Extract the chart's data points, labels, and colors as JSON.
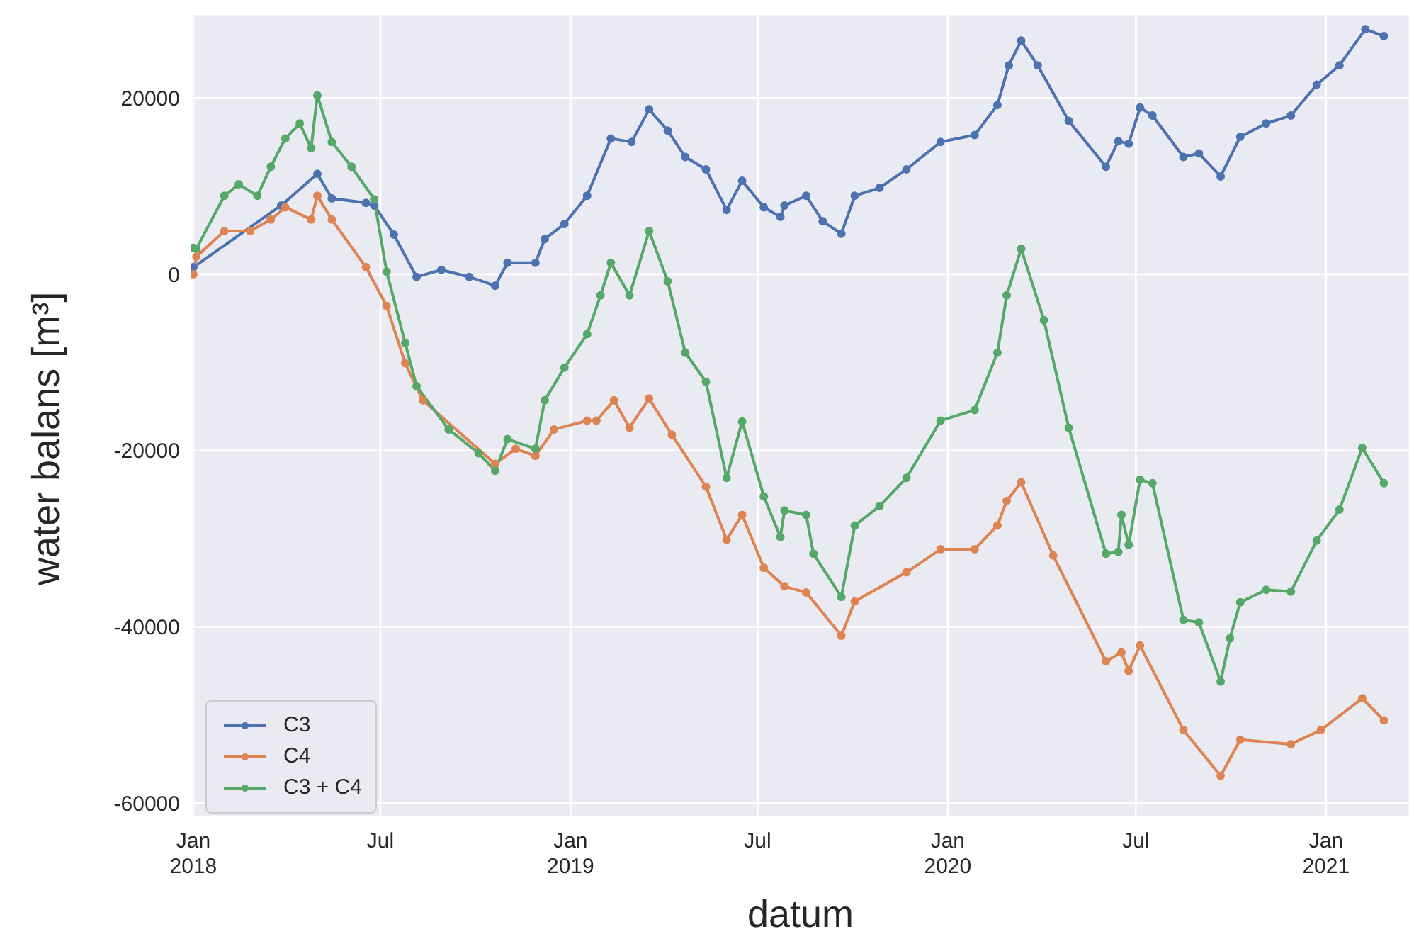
{
  "chart_data": {
    "type": "line",
    "xlabel": "datum",
    "ylabel": "water balans [m³]",
    "xlim": [
      "2017-12-30",
      "2021-03-23"
    ],
    "ylim": [
      -61500,
      29500
    ],
    "xticks": [
      {
        "value": "2018-01-01",
        "label": "Jan\n2018"
      },
      {
        "value": "2018-07-01",
        "label": "Jul"
      },
      {
        "value": "2019-01-01",
        "label": "Jan\n2019"
      },
      {
        "value": "2019-07-01",
        "label": "Jul"
      },
      {
        "value": "2020-01-01",
        "label": "Jan\n2020"
      },
      {
        "value": "2020-07-01",
        "label": "Jul"
      },
      {
        "value": "2021-01-01",
        "label": "Jan\n2021"
      }
    ],
    "yticks": [
      -60000,
      -40000,
      -20000,
      0,
      20000
    ],
    "grid": true,
    "legend": "bottom left",
    "marker": "circle",
    "line_style": "solid",
    "series": [
      {
        "name": "C3",
        "color": "#4c72b0",
        "x": [
          "2018-01-01",
          "2018-03-27",
          "2018-05-01",
          "2018-05-15",
          "2018-06-17",
          "2018-06-25",
          "2018-07-14",
          "2018-08-05",
          "2018-08-29",
          "2018-09-25",
          "2018-10-20",
          "2018-11-01",
          "2018-11-28",
          "2018-12-07",
          "2018-12-26",
          "2019-01-17",
          "2019-02-09",
          "2019-03-01",
          "2019-03-18",
          "2019-04-05",
          "2019-04-22",
          "2019-05-12",
          "2019-06-01",
          "2019-06-16",
          "2019-07-07",
          "2019-07-23",
          "2019-07-27",
          "2019-08-17",
          "2019-09-02",
          "2019-09-20",
          "2019-10-03",
          "2019-10-27",
          "2019-11-22",
          "2019-12-25",
          "2020-01-27",
          "2020-02-18",
          "2020-02-29",
          "2020-03-12",
          "2020-03-28",
          "2020-04-27",
          "2020-06-02",
          "2020-06-14",
          "2020-06-24",
          "2020-07-05",
          "2020-07-17",
          "2020-08-16",
          "2020-08-31",
          "2020-09-21",
          "2020-10-10",
          "2020-11-04",
          "2020-11-28",
          "2020-12-23",
          "2021-01-14",
          "2021-02-08",
          "2021-02-26"
        ],
        "values": [
          800,
          7800,
          11400,
          8600,
          8100,
          7800,
          4500,
          -300,
          500,
          -300,
          -1300,
          1300,
          1300,
          4000,
          5700,
          8900,
          15400,
          15000,
          18700,
          16300,
          13300,
          11900,
          7300,
          10600,
          7600,
          6500,
          7800,
          8900,
          6000,
          4600,
          8900,
          9800,
          11900,
          15000,
          15800,
          19200,
          23700,
          26500,
          23700,
          17400,
          12200,
          15100,
          14800,
          18900,
          18000,
          13300,
          13700,
          11100,
          15600,
          17100,
          18000,
          21500,
          23700,
          27800,
          27000
        ]
      },
      {
        "name": "C4",
        "color": "#dd8452",
        "x": [
          "2018-01-01",
          "2018-01-04",
          "2018-01-31",
          "2018-02-25",
          "2018-03-17",
          "2018-03-31",
          "2018-04-25",
          "2018-05-01",
          "2018-05-15",
          "2018-06-17",
          "2018-07-07",
          "2018-07-25",
          "2018-08-11",
          "2018-10-20",
          "2018-11-09",
          "2018-11-28",
          "2018-12-16",
          "2019-01-17",
          "2019-01-26",
          "2019-02-12",
          "2019-02-27",
          "2019-03-18",
          "2019-04-09",
          "2019-05-12",
          "2019-06-01",
          "2019-06-16",
          "2019-07-07",
          "2019-07-27",
          "2019-08-17",
          "2019-09-20",
          "2019-10-03",
          "2019-11-22",
          "2019-12-25",
          "2020-01-27",
          "2020-02-18",
          "2020-02-27",
          "2020-03-12",
          "2020-04-12",
          "2020-06-02",
          "2020-06-17",
          "2020-06-24",
          "2020-07-05",
          "2020-08-16",
          "2020-09-21",
          "2020-10-10",
          "2020-11-28",
          "2020-12-27",
          "2021-02-05",
          "2021-02-26"
        ],
        "values": [
          0,
          2000,
          4900,
          4900,
          6200,
          7600,
          6200,
          8900,
          6200,
          800,
          -3600,
          -10100,
          -14300,
          -21500,
          -19800,
          -20600,
          -17600,
          -16600,
          -16600,
          -14300,
          -17400,
          -14100,
          -18200,
          -24100,
          -30100,
          -27300,
          -33300,
          -35400,
          -36100,
          -41000,
          -37100,
          -33800,
          -31200,
          -31200,
          -28500,
          -25700,
          -23600,
          -31900,
          -43900,
          -42900,
          -45000,
          -42100,
          -51700,
          -56900,
          -52800,
          -53300,
          -51700,
          -48100,
          -50600
        ]
      },
      {
        "name": "C3 + C4",
        "color": "#55a868",
        "x": [
          "2018-01-01",
          "2018-01-04",
          "2018-01-31",
          "2018-02-14",
          "2018-03-04",
          "2018-03-17",
          "2018-03-31",
          "2018-04-14",
          "2018-04-25",
          "2018-05-01",
          "2018-05-15",
          "2018-06-03",
          "2018-06-25",
          "2018-07-07",
          "2018-07-25",
          "2018-08-05",
          "2018-09-05",
          "2018-10-04",
          "2018-10-20",
          "2018-11-01",
          "2018-11-28",
          "2018-12-07",
          "2018-12-26",
          "2019-01-17",
          "2019-01-30",
          "2019-02-09",
          "2019-02-27",
          "2019-03-18",
          "2019-04-05",
          "2019-04-22",
          "2019-05-12",
          "2019-06-01",
          "2019-06-16",
          "2019-07-07",
          "2019-07-23",
          "2019-07-27",
          "2019-08-17",
          "2019-08-24",
          "2019-09-20",
          "2019-10-03",
          "2019-10-27",
          "2019-11-22",
          "2019-12-25",
          "2020-01-27",
          "2020-02-18",
          "2020-02-27",
          "2020-03-12",
          "2020-04-03",
          "2020-04-27",
          "2020-06-02",
          "2020-06-14",
          "2020-06-17",
          "2020-06-24",
          "2020-07-05",
          "2020-07-17",
          "2020-08-16",
          "2020-08-31",
          "2020-09-21",
          "2020-09-30",
          "2020-10-10",
          "2020-11-04",
          "2020-11-28",
          "2020-12-23",
          "2021-01-14",
          "2021-02-05",
          "2021-02-26"
        ],
        "values": [
          3000,
          2900,
          8900,
          10200,
          8900,
          12200,
          15400,
          17100,
          14300,
          20300,
          15000,
          12200,
          8500,
          300,
          -7800,
          -12700,
          -17600,
          -20300,
          -22300,
          -18700,
          -19800,
          -14300,
          -10600,
          -6800,
          -2400,
          1300,
          -2400,
          4900,
          -800,
          -8900,
          -12200,
          -23100,
          -16700,
          -25200,
          -29800,
          -26800,
          -27300,
          -31700,
          -36600,
          -28500,
          -26300,
          -23100,
          -16600,
          -15400,
          -8900,
          -2400,
          2900,
          -5200,
          -17400,
          -31700,
          -31500,
          -27300,
          -30700,
          -23300,
          -23700,
          -39200,
          -39500,
          -46200,
          -41300,
          -37200,
          -35800,
          -36000,
          -30200,
          -26700,
          -19700,
          -23700
        ]
      }
    ]
  }
}
